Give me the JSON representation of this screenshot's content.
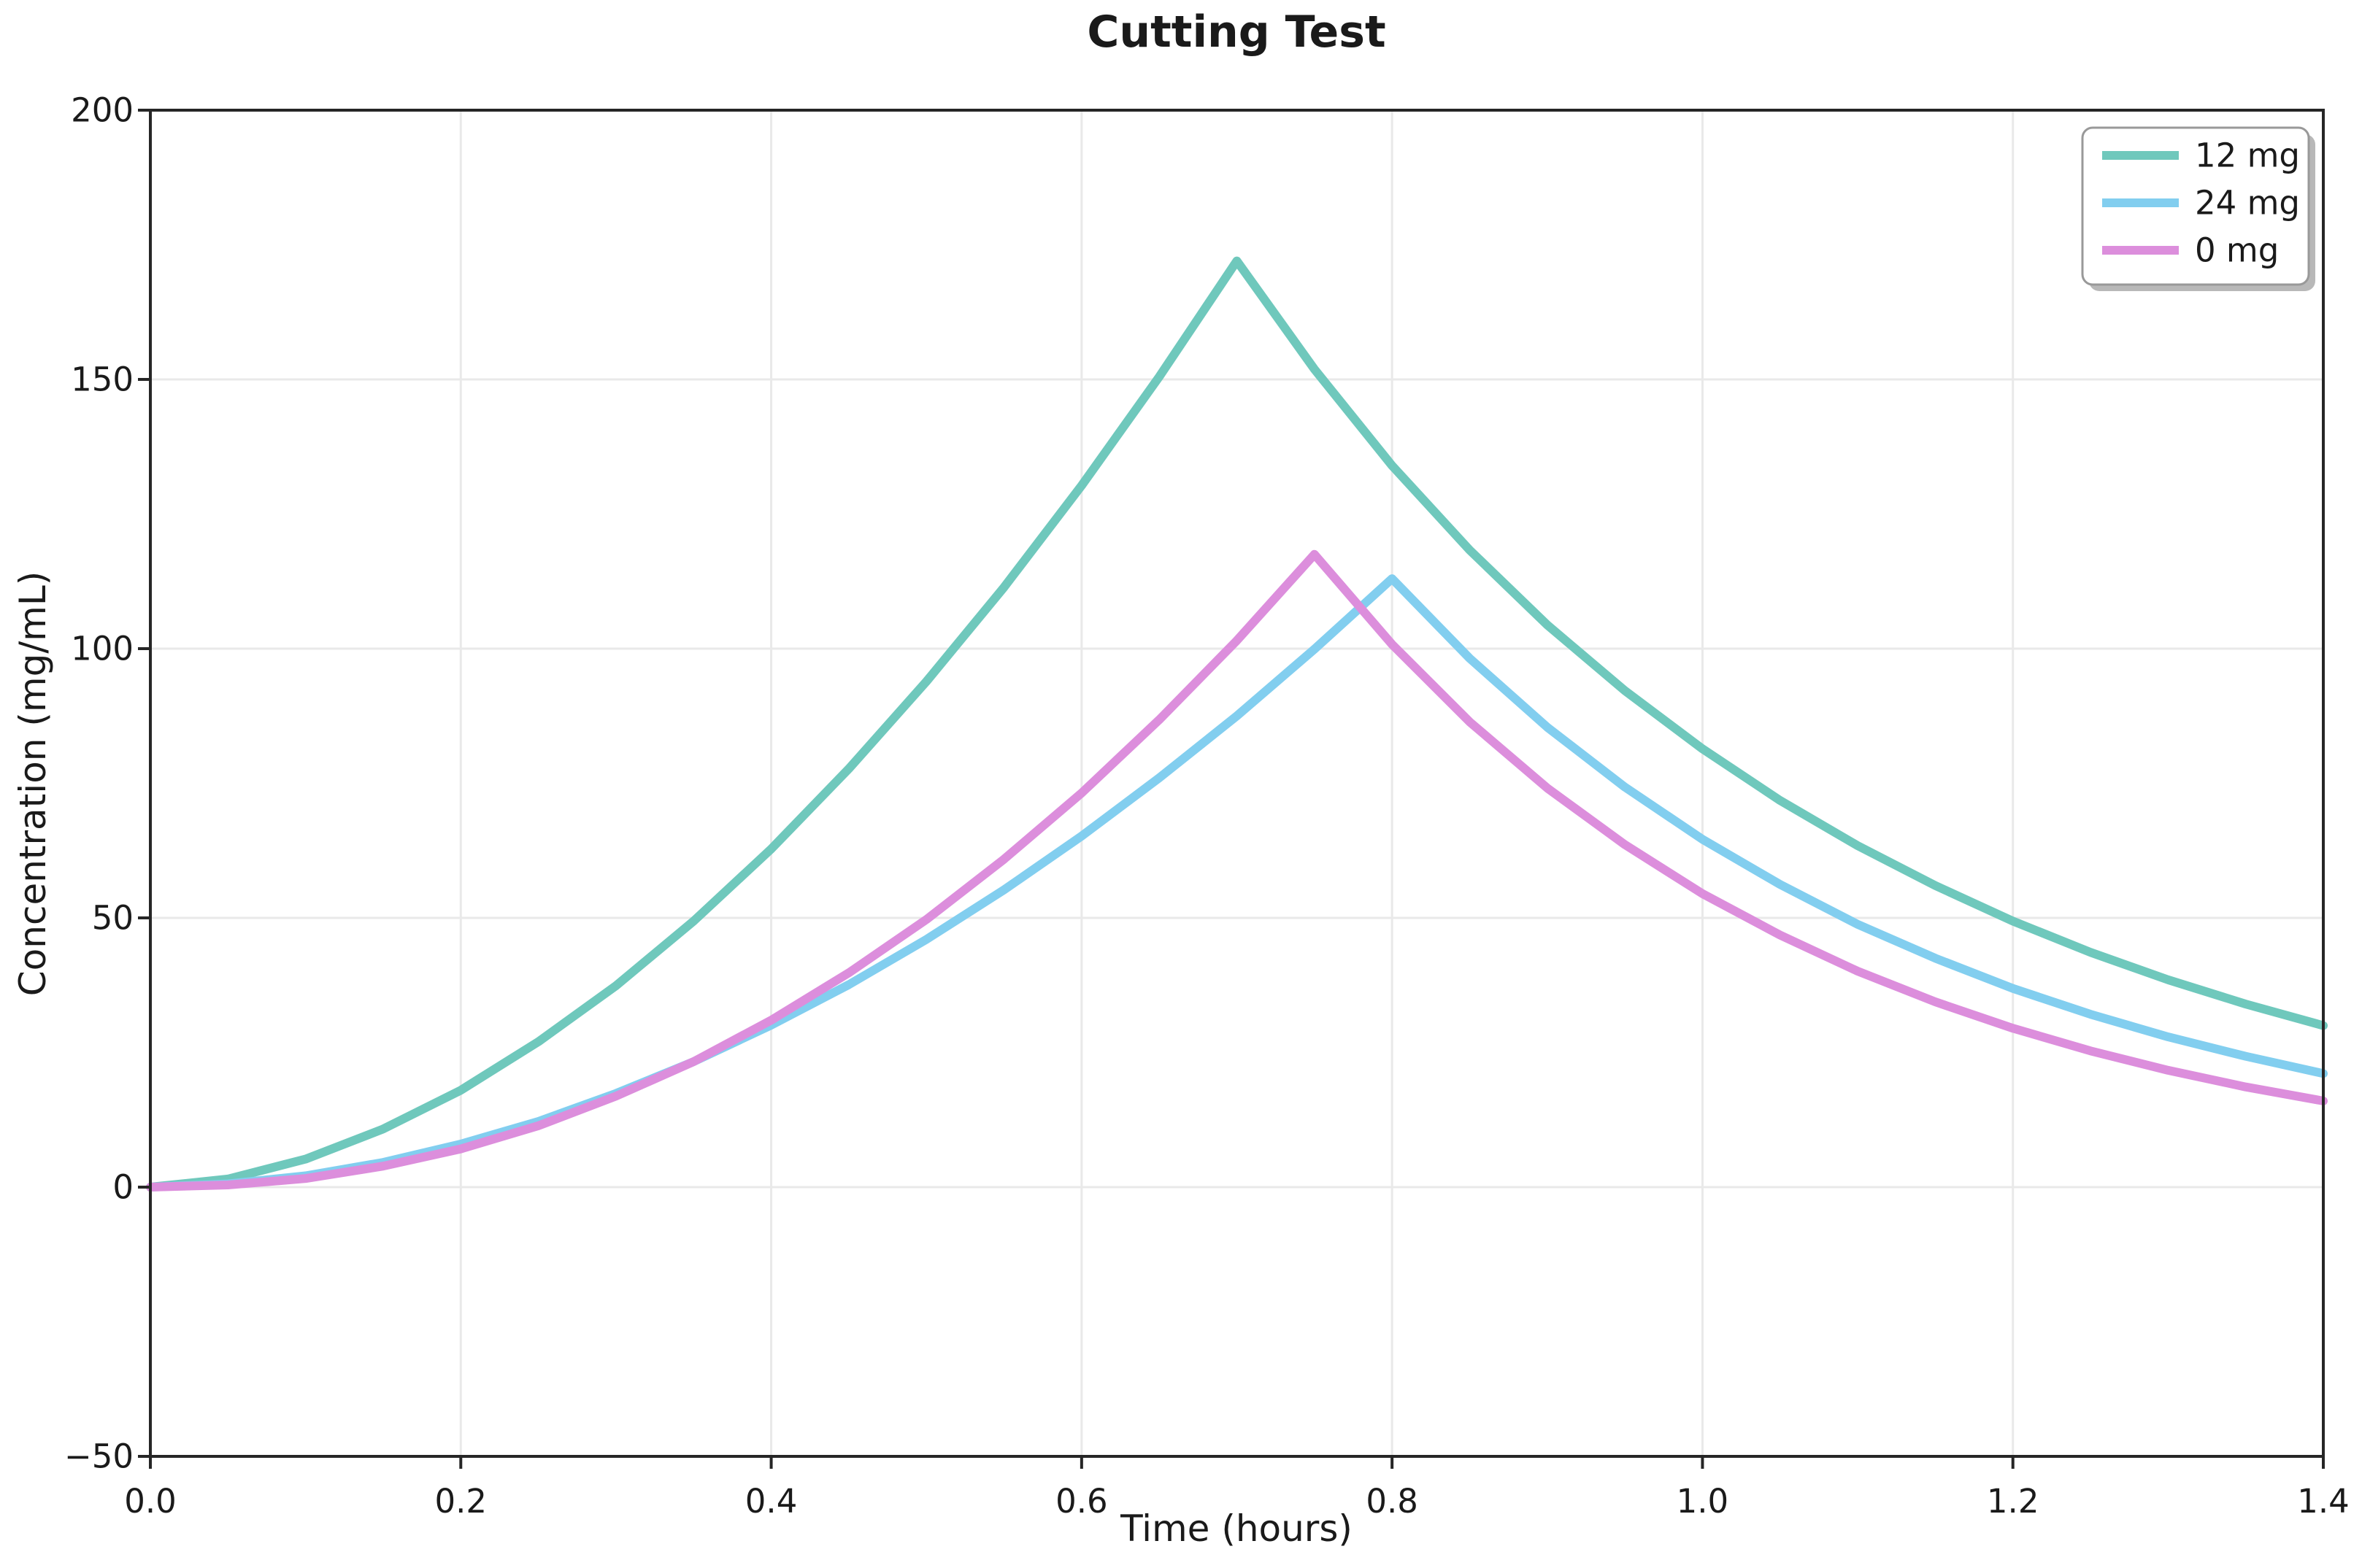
{
  "chart_data": {
    "type": "line",
    "title": "Cutting Test",
    "xlabel": "Time (hours)",
    "ylabel": "Concentration (mg/mL)",
    "xlim": [
      0,
      1.4
    ],
    "ylim": [
      -50,
      200
    ],
    "grid": true,
    "legend_position": "upper right",
    "x_tick_values": [
      0.0,
      0.2,
      0.4,
      0.6,
      0.8,
      1.0,
      1.2,
      1.4
    ],
    "x_tick_labels": [
      "0.0",
      "0.2",
      "0.4",
      "0.6",
      "0.8",
      "1.0",
      "1.2",
      "1.4"
    ],
    "y_tick_values": [
      200,
      150,
      100,
      50,
      0,
      -50
    ],
    "y_tick_labels": [
      "200",
      "150",
      "100",
      "50",
      "0",
      "−50"
    ],
    "x": [
      0.0,
      0.05,
      0.1,
      0.15,
      0.2,
      0.25,
      0.3,
      0.35,
      0.4,
      0.45,
      0.5,
      0.55,
      0.6,
      0.65,
      0.7,
      0.75,
      0.8,
      0.85,
      0.9,
      0.95,
      1.0,
      1.05,
      1.1,
      1.15,
      1.2,
      1.25,
      1.3,
      1.35,
      1.4
    ],
    "series": [
      {
        "name": "12 mg",
        "color": "#6fc8bc",
        "values": [
          0.0,
          1.5,
          5.2,
          10.8,
          18.0,
          27.0,
          37.4,
          49.4,
          62.8,
          77.7,
          93.9,
          111.4,
          130.3,
          150.5,
          172.0,
          151.9,
          134.0,
          118.3,
          104.4,
          92.2,
          81.4,
          71.8,
          63.4,
          56.0,
          49.4,
          43.6,
          38.5,
          34.0,
          30.0
        ]
      },
      {
        "name": "24 mg",
        "color": "#82ceef",
        "values": [
          0.0,
          0.6,
          2.1,
          4.6,
          8.0,
          12.2,
          17.4,
          23.3,
          30.1,
          37.6,
          46.0,
          55.2,
          65.2,
          76.0,
          87.5,
          99.9,
          113.0,
          98.2,
          85.4,
          74.3,
          64.6,
          56.2,
          48.8,
          42.5,
          36.9,
          32.1,
          27.9,
          24.3,
          21.1
        ]
      },
      {
        "name": "0 mg",
        "color": "#dc8edc",
        "values": [
          0.0,
          0.4,
          1.6,
          3.9,
          7.1,
          11.4,
          16.9,
          23.3,
          31.0,
          39.8,
          49.7,
          60.9,
          73.2,
          86.8,
          101.5,
          117.5,
          100.8,
          86.4,
          74.1,
          63.6,
          54.5,
          46.8,
          40.1,
          34.4,
          29.5,
          25.3,
          21.7,
          18.6,
          16.0
        ]
      }
    ],
    "style": {
      "grid_color": "#e9e9e9",
      "spine_color": "#262626",
      "tick_color": "#262626",
      "line_width": 12,
      "legend_border_color": "#999999",
      "legend_shadow_color": "#a6a6a6",
      "background": "#ffffff"
    }
  }
}
